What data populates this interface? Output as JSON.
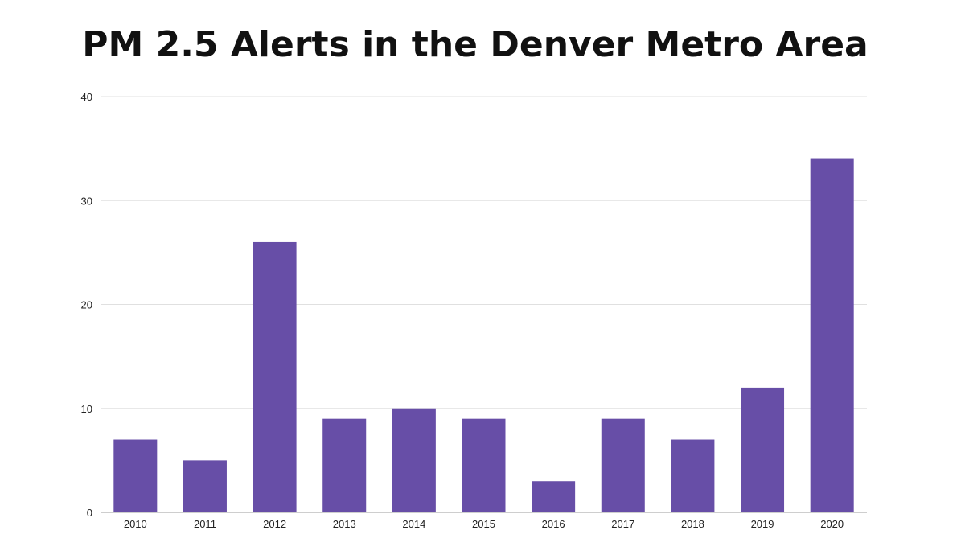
{
  "chart_data": {
    "type": "bar",
    "title": "PM 2.5 Alerts in the Denver Metro Area",
    "categories": [
      "2010",
      "2011",
      "2012",
      "2013",
      "2014",
      "2015",
      "2016",
      "2017",
      "2018",
      "2019",
      "2020"
    ],
    "values": [
      7,
      5,
      26,
      9,
      10,
      9,
      3,
      9,
      7,
      12,
      34
    ],
    "y_ticks": [
      "0",
      "10",
      "20",
      "30",
      "40"
    ],
    "ylim": [
      0,
      40
    ],
    "xlabel": "",
    "ylabel": "",
    "grid": true,
    "legend": "none",
    "bar_color": "#674ea7",
    "grid_color": "#e0e0e0",
    "axis_color": "#9e9e9e"
  }
}
